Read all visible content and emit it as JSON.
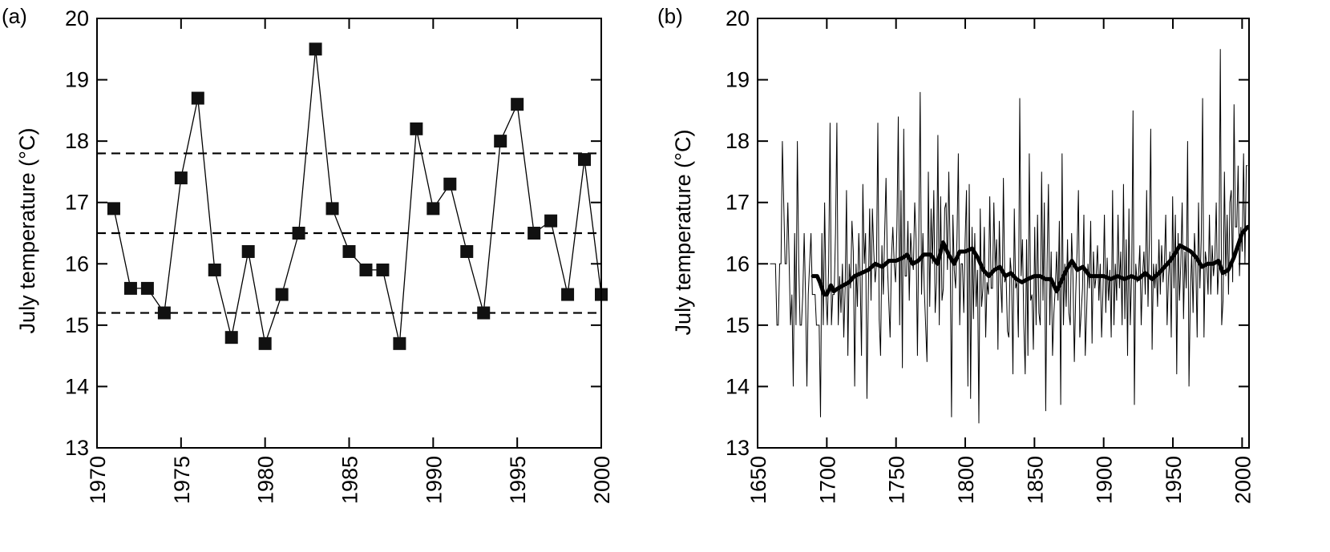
{
  "chart_data": [
    {
      "panel_label": "(a)",
      "type": "line",
      "ylabel": "July temperature (°C)",
      "xlim": [
        1970,
        2000
      ],
      "ylim": [
        13,
        20
      ],
      "xticks": [
        "1970",
        "1975",
        "1980",
        "1985",
        "1990",
        "1995",
        "2000"
      ],
      "yticks": [
        "13",
        "14",
        "15",
        "16",
        "17",
        "18",
        "19",
        "20"
      ],
      "grid": false,
      "marker": "square",
      "series": [
        {
          "x": [
            1971,
            1972,
            1973,
            1974,
            1975,
            1976,
            1977,
            1978,
            1979,
            1980,
            1981,
            1982,
            1983,
            1984,
            1985,
            1986,
            1987,
            1988,
            1989,
            1990,
            1991,
            1992,
            1993,
            1994,
            1995,
            1996,
            1997,
            1998,
            1999,
            2000
          ],
          "y": [
            16.9,
            15.6,
            15.6,
            15.2,
            17.4,
            18.7,
            15.9,
            14.8,
            16.2,
            14.7,
            15.5,
            16.5,
            19.5,
            16.9,
            16.2,
            15.9,
            15.9,
            14.7,
            18.2,
            16.9,
            17.3,
            16.2,
            15.2,
            18.0,
            18.6,
            16.5,
            16.7,
            15.5,
            17.7,
            15.5
          ]
        }
      ],
      "reference_lines": [
        17.8,
        16.5,
        15.2
      ]
    },
    {
      "panel_label": "(b)",
      "type": "line",
      "ylabel": "July temperature (°C)",
      "xlim": [
        1650,
        2005
      ],
      "ylim": [
        13,
        20
      ],
      "xticks": [
        "1650",
        "1700",
        "1750",
        "1800",
        "1850",
        "1900",
        "1950",
        "2000"
      ],
      "yticks": [
        "13",
        "14",
        "15",
        "16",
        "17",
        "18",
        "19",
        "20"
      ],
      "grid": false,
      "series": [
        {
          "x_start": 1659,
          "x_end": 2004,
          "y": [
            16.0,
            16.0,
            16.0,
            16.0,
            16.0,
            15.0,
            15.0,
            16.0,
            16.0,
            18.0,
            17.0,
            16.0,
            16.0,
            17.0,
            16.0,
            15.0,
            15.5,
            14.0,
            16.5,
            15.0,
            18.0,
            16.0,
            15.0,
            15.0,
            15.5,
            16.5,
            15.5,
            14.0,
            15.5,
            16.0,
            16.5,
            15.5,
            15.5,
            15.5,
            15.0,
            15.0,
            15.0,
            13.5,
            16.5,
            15.0,
            17.0,
            15.5,
            15.0,
            16.0,
            18.3,
            15.0,
            15.5,
            15.5,
            16.5,
            18.3,
            15.0,
            15.8,
            15.2,
            16.0,
            14.8,
            15.6,
            17.2,
            14.5,
            16.0,
            15.6,
            16.7,
            16.2,
            14.0,
            16.0,
            15.3,
            16.5,
            15.8,
            14.5,
            17.3,
            16.0,
            16.5,
            13.8,
            15.5,
            16.9,
            15.4,
            16.9,
            16.2,
            15.7,
            16.0,
            18.3,
            15.1,
            14.5,
            16.3,
            15.5,
            16.5,
            17.4,
            16.0,
            15.4,
            14.8,
            16.1,
            16.6,
            16.0,
            15.7,
            16.6,
            18.4,
            15.0,
            17.2,
            14.3,
            18.2,
            15.8,
            15.8,
            16.7,
            15.4,
            16.5,
            16.1,
            15.9,
            17.0,
            16.4,
            14.5,
            16.5,
            18.8,
            15.5,
            16.5,
            15.6,
            15.0,
            14.4,
            17.5,
            15.3,
            16.9,
            16.0,
            17.2,
            15.2,
            15.7,
            18.1,
            15.0,
            17.1,
            15.4,
            15.6,
            16.9,
            17.0,
            15.9,
            17.5,
            16.2,
            13.5,
            16.8,
            15.9,
            15.6,
            16.4,
            17.8,
            15.0,
            16.0,
            16.0,
            15.2,
            16.4,
            17.2,
            14.0,
            17.3,
            13.8,
            16.6,
            15.1,
            16.5,
            15.3,
            15.9,
            13.4,
            16.9,
            15.3,
            15.6,
            16.6,
            14.8,
            15.7,
            15.5,
            17.1,
            15.6,
            15.6,
            17.0,
            15.9,
            16.4,
            14.6,
            16.7,
            15.7,
            15.2,
            17.4,
            15.7,
            15.8,
            14.9,
            14.8,
            16.1,
            15.8,
            14.2,
            16.9,
            15.6,
            15.7,
            14.8,
            18.7,
            15.8,
            16.4,
            15.0,
            14.2,
            16.4,
            14.5,
            17.8,
            15.4,
            15.5,
            14.6,
            16.6,
            15.0,
            16.8,
            15.2,
            15.0,
            17.5,
            15.4,
            17.0,
            13.6,
            16.0,
            17.3,
            15.0,
            16.2,
            14.5,
            15.2,
            15.6,
            16.2,
            15.4,
            16.7,
            13.7,
            17.8,
            15.0,
            16.0,
            15.3,
            16.4,
            15.2,
            15.0,
            16.5,
            15.8,
            14.4,
            15.5,
            16.2,
            17.2,
            14.8,
            15.2,
            15.6,
            16.8,
            14.5,
            15.2,
            16.0,
            15.6,
            16.7,
            14.7,
            16.2,
            15.6,
            15.8,
            16.3,
            15.4,
            16.0,
            14.8,
            15.6,
            16.8,
            15.2,
            16.1,
            15.4,
            15.9,
            14.8,
            17.2,
            15.0,
            16.0,
            15.4,
            16.8,
            15.6,
            16.2,
            15.0,
            17.3,
            15.1,
            16.4,
            14.5,
            16.9,
            15.0,
            15.8,
            18.5,
            13.7,
            16.0,
            15.7,
            15.8,
            16.3,
            15.0,
            15.8,
            16.2,
            15.5,
            17.2,
            15.3,
            16.4,
            18.2,
            14.6,
            16.0,
            15.6,
            16.0,
            15.3,
            16.4,
            15.5,
            16.3,
            15.7,
            16.0,
            16.8,
            15.0,
            15.8,
            16.2,
            14.8,
            17.1,
            15.6,
            16.8,
            14.2,
            16.5,
            15.4,
            16.0,
            17.0,
            15.1,
            16.2,
            15.6,
            18.0,
            14.0,
            15.5,
            16.2,
            15.2,
            16.5,
            16.0,
            14.8,
            17.0,
            15.6,
            16.4,
            18.7,
            14.8,
            16.2,
            16.0,
            15.5,
            16.8,
            15.5,
            16.3,
            15.8,
            16.1,
            17.0,
            15.5,
            16.0,
            19.5,
            15.0,
            15.4,
            17.5,
            15.8,
            16.8,
            15.5,
            17.0,
            17.2,
            15.7,
            18.6,
            16.6,
            16.6,
            17.6,
            15.8,
            16.6,
            16.2,
            17.8,
            16.0,
            17.6,
            17.6
          ]
        },
        {
          "name_hidden": true,
          "x": [
            1690,
            1693,
            1695,
            1698,
            1700,
            1703,
            1705,
            1708,
            1712,
            1716,
            1720,
            1725,
            1730,
            1735,
            1740,
            1745,
            1750,
            1755,
            1758,
            1762,
            1766,
            1770,
            1775,
            1780,
            1784,
            1788,
            1792,
            1796,
            1800,
            1805,
            1809,
            1813,
            1817,
            1821,
            1825,
            1829,
            1833,
            1837,
            1841,
            1845,
            1850,
            1854,
            1858,
            1862,
            1866,
            1869,
            1873,
            1877,
            1881,
            1885,
            1890,
            1895,
            1900,
            1905,
            1910,
            1915,
            1920,
            1925,
            1930,
            1935,
            1940,
            1944,
            1948,
            1951,
            1955,
            1959,
            1963,
            1967,
            1971,
            1975,
            1979,
            1983,
            1986,
            1990,
            1994,
            1997,
            2000,
            2004
          ],
          "y": [
            15.8,
            15.8,
            15.7,
            15.5,
            15.5,
            15.65,
            15.55,
            15.6,
            15.65,
            15.7,
            15.8,
            15.85,
            15.9,
            16.0,
            15.95,
            16.05,
            16.05,
            16.1,
            16.15,
            16.0,
            16.05,
            16.15,
            16.15,
            16.0,
            16.35,
            16.15,
            16.0,
            16.2,
            16.2,
            16.25,
            16.1,
            15.9,
            15.8,
            15.9,
            15.95,
            15.8,
            15.85,
            15.75,
            15.7,
            15.75,
            15.8,
            15.8,
            15.75,
            15.75,
            15.55,
            15.7,
            15.9,
            16.05,
            15.9,
            15.95,
            15.8,
            15.8,
            15.8,
            15.75,
            15.8,
            15.75,
            15.8,
            15.75,
            15.85,
            15.75,
            15.85,
            15.95,
            16.05,
            16.15,
            16.3,
            16.25,
            16.2,
            16.1,
            15.95,
            16.0,
            16.0,
            16.05,
            15.85,
            15.9,
            16.1,
            16.3,
            16.5,
            16.6
          ]
        }
      ]
    }
  ]
}
